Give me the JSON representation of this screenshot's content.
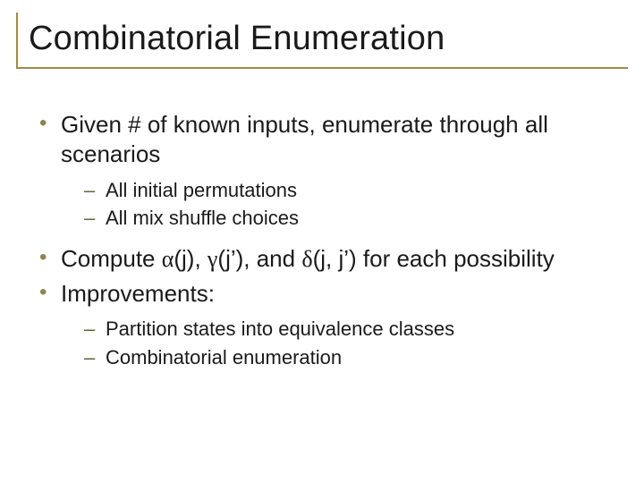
{
  "colors": {
    "title_text": "#1a1a1a",
    "title_border": "#a28a46",
    "bullet1_marker": "#8f8352",
    "bullet1_text": "#1a1a1a",
    "bullet2_marker": "#5c6a3a",
    "bullet2_text": "#1a1a1a",
    "background": "#ffffff"
  },
  "typography": {
    "title_fontsize": 38,
    "level1_fontsize": 26,
    "level2_fontsize": 22,
    "font_family": "Arial"
  },
  "title": "Combinatorial Enumeration",
  "bullets": {
    "b1": "Given # of known inputs, enumerate through all scenarios",
    "b1_sub": {
      "s1": "All initial permutations",
      "s2": "All mix shuffle choices"
    },
    "b2_prefix": "Compute ",
    "b2_alpha": "α",
    "b2_p1": "(j), ",
    "b2_gamma": "γ",
    "b2_p2": "(j’), and ",
    "b2_delta": "δ",
    "b2_p3": "(j, j’) for each possibility",
    "b3": "Improvements:",
    "b3_sub": {
      "s1": "Partition states into equivalence classes",
      "s2": "Combinatorial enumeration"
    }
  }
}
